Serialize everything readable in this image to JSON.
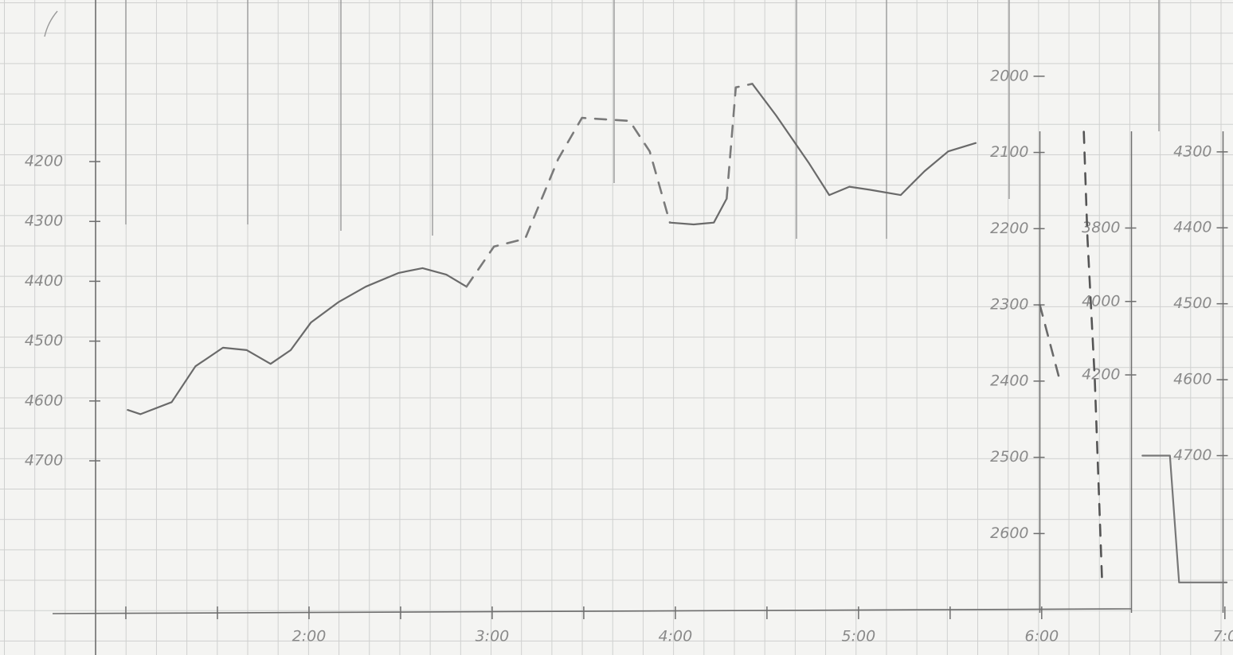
{
  "chart_data": [
    {
      "type": "line",
      "x": [
        1.01,
        1.08,
        1.25,
        1.38,
        1.53,
        1.66,
        1.79,
        1.9,
        2.01,
        2.16,
        2.31,
        2.49,
        2.62,
        2.75,
        2.86,
        3.01,
        3.18,
        3.36,
        3.49,
        3.75,
        3.86,
        3.97,
        4.1,
        4.21,
        4.28,
        4.33,
        4.42,
        4.55,
        4.73,
        4.84,
        4.95,
        5.06,
        5.23,
        5.36,
        5.49,
        5.64
      ],
      "series": [
        {
          "color": "#6a6a6a",
          "line_style": "solid",
          "values": [
            4615,
            4622,
            4602,
            4542,
            4511,
            4515,
            4538,
            4515,
            4469,
            4435,
            4409,
            4386,
            4378,
            4389,
            4409,
            null,
            null,
            null,
            null,
            null,
            null,
            4302,
            4305,
            4302,
            4262,
            null,
            4070,
            4123,
            4203,
            4256,
            4242,
            4247,
            4256,
            4216,
            4183,
            4169
          ]
        },
        {
          "color": "#7a7a7a",
          "line_style": "dashed",
          "values": [
            null,
            null,
            null,
            null,
            null,
            null,
            null,
            null,
            null,
            null,
            null,
            null,
            null,
            null,
            4409,
            4342,
            4329,
            4196,
            4127,
            4132,
            4183,
            4302,
            null,
            null,
            4262,
            4076,
            4070,
            null,
            null,
            null,
            null,
            null,
            null,
            null,
            null,
            null
          ]
        }
      ],
      "xlim": [
        0.6,
        7.04
      ],
      "xticks": [
        {
          "value": 2,
          "label": "2:00"
        },
        {
          "value": 3,
          "label": "3:00"
        },
        {
          "value": 4,
          "label": "4:00"
        },
        {
          "value": 5,
          "label": "5:00"
        },
        {
          "value": 6,
          "label": "6:00"
        },
        {
          "value": 7,
          "label": "7:0"
        }
      ],
      "xminor": [
        1,
        1.5,
        2.5,
        3.5,
        4.5,
        5.5
      ],
      "ylim": [
        4954,
        3930
      ],
      "yticks": [
        4200,
        4300,
        4400,
        4500,
        4600,
        4700
      ]
    },
    {
      "type": "line",
      "x": [
        5.99,
        6.1
      ],
      "series": [
        {
          "color": "#6a6a6a",
          "line_style": "dashed",
          "values": [
            2300,
            2400
          ]
        }
      ],
      "axis_at": 5.99,
      "ylim": [
        2704,
        1900
      ],
      "yticks": [
        2000,
        2100,
        2200,
        2300,
        2400,
        2500,
        2600
      ]
    },
    {
      "type": "line",
      "x": [
        6.23,
        6.25,
        6.29,
        6.33
      ],
      "series": [
        {
          "color": "#555555",
          "line_style": "dashed",
          "values": [
            3538,
            3828,
            4214,
            4766
          ]
        }
      ],
      "axis_at": 6.49,
      "ylim": [
        4848,
        3179
      ],
      "yticks": [
        3800,
        4000,
        4200
      ]
    },
    {
      "type": "line",
      "x": [
        6.55,
        6.7,
        6.75,
        7.01
      ],
      "series": [
        {
          "color": "#777777",
          "line_style": "solid",
          "values": [
            4700,
            4700,
            4867,
            4867
          ]
        }
      ],
      "axis_at": 6.99,
      "ylim": [
        4907,
        4100
      ],
      "yticks": [
        4300,
        4400,
        4500,
        4600,
        4700
      ]
    }
  ]
}
